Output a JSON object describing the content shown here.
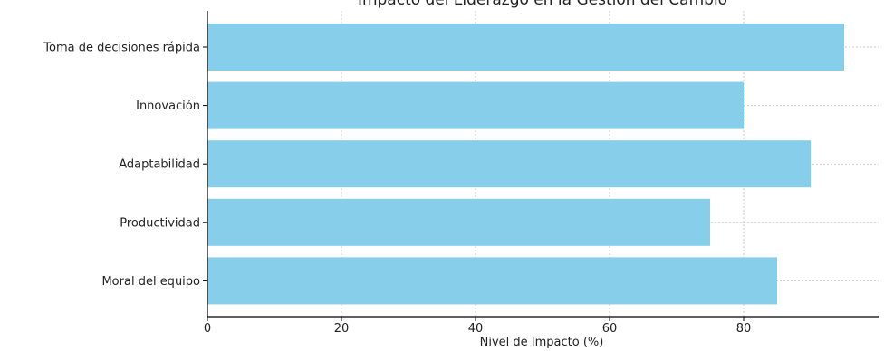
{
  "chart_data": {
    "type": "bar",
    "orientation": "horizontal",
    "title": "Impacto del Liderazgo en la Gestión del Cambio",
    "xlabel": "Nivel de Impacto (%)",
    "ylabel": "",
    "categories": [
      "Toma de decisiones rápida",
      "Innovación",
      "Adaptabilidad",
      "Productividad",
      "Moral del equipo"
    ],
    "values": [
      95,
      80,
      90,
      75,
      85
    ],
    "xlim": [
      0,
      100
    ],
    "xticks": [
      0,
      20,
      40,
      60,
      80
    ],
    "grid": true,
    "bar_color": "#87CEEB"
  }
}
